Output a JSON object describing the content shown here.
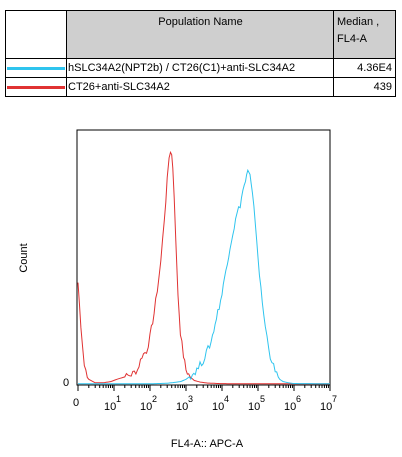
{
  "table": {
    "header_name": "Population Name",
    "header_median_line1": "Median ,",
    "header_median_line2": "FL4-A",
    "rows": [
      {
        "name": "hSLC34A2(NPT2b) / CT26(C1)+anti-SLC34A2",
        "median": "4.36E4",
        "color": "#2fc4ee"
      },
      {
        "name": "CT26+anti-SLC34A2",
        "median": "439",
        "color": "#e03232"
      }
    ]
  },
  "chart_data": {
    "type": "line",
    "title": "",
    "xlabel": "FL4-A:: APC-A",
    "ylabel": "Count",
    "x_scale": "log",
    "xlim": [
      1,
      10000000
    ],
    "y_ticks": [
      "0"
    ],
    "x_tick_labels": [
      {
        "value": 10,
        "base": "10",
        "exp": "1"
      },
      {
        "value": 100,
        "base": "10",
        "exp": "2"
      },
      {
        "value": 1000,
        "base": "10",
        "exp": "3"
      },
      {
        "value": 10000,
        "base": "10",
        "exp": "4"
      },
      {
        "value": 100000,
        "base": "10",
        "exp": "5"
      },
      {
        "value": 1000000,
        "base": "10",
        "exp": "6"
      },
      {
        "value": 10000000,
        "base": "10",
        "exp": "7"
      }
    ],
    "x_zero_label": "0",
    "ylim": [
      0,
      100
    ],
    "series": [
      {
        "color": "#e03232",
        "x": [
          1,
          1.2,
          1.5,
          2,
          3,
          5,
          8,
          12,
          20,
          30,
          45,
          60,
          80,
          100,
          130,
          160,
          200,
          250,
          300,
          340,
          370,
          400,
          430,
          470,
          520,
          600,
          700,
          850,
          1000,
          1300,
          1700,
          2500,
          4000,
          8000,
          20000,
          100000,
          10000000
        ],
        "y": [
          43,
          25,
          8,
          2,
          0.5,
          0.5,
          1,
          2,
          3,
          4,
          6,
          12,
          14,
          20,
          30,
          40,
          52,
          70,
          86,
          96,
          99,
          97,
          92,
          80,
          60,
          38,
          22,
          12,
          6,
          3,
          1.5,
          0.8,
          0.4,
          0.2,
          0.1,
          0.1,
          0.1
        ]
      },
      {
        "color": "#2fc4ee",
        "x": [
          1,
          100,
          300,
          700,
          1000,
          1500,
          2000,
          3000,
          5000,
          7000,
          10000,
          14000,
          20000,
          26000,
          32000,
          38000,
          45000,
          52000,
          60000,
          70000,
          85000,
          100000,
          120000,
          160000,
          220000,
          300000,
          400000,
          500000,
          700000,
          1000000,
          10000000
        ],
        "y": [
          0.1,
          0.1,
          0.3,
          1,
          2,
          4,
          6,
          10,
          18,
          28,
          38,
          52,
          64,
          72,
          76,
          82,
          86,
          90,
          88,
          80,
          68,
          54,
          40,
          24,
          12,
          5,
          2,
          1,
          0.5,
          0.2,
          0.1
        ]
      }
    ]
  }
}
